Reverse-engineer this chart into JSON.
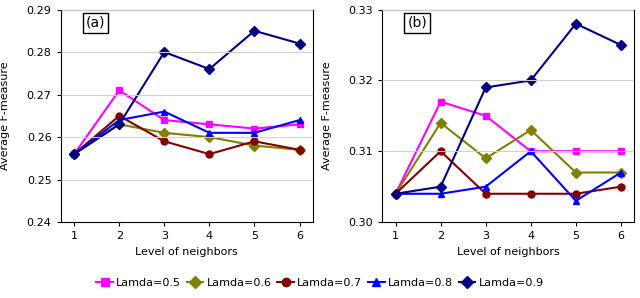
{
  "x": [
    1,
    2,
    3,
    4,
    5,
    6
  ],
  "panel_a": {
    "lambda_0.5": [
      0.256,
      0.271,
      0.264,
      0.263,
      0.262,
      0.263
    ],
    "lambda_0.6": [
      0.256,
      0.263,
      0.261,
      0.26,
      0.258,
      0.257
    ],
    "lambda_0.7": [
      0.256,
      0.265,
      0.259,
      0.256,
      0.259,
      0.257
    ],
    "lambda_0.8": [
      0.256,
      0.264,
      0.266,
      0.261,
      0.261,
      0.264
    ],
    "lambda_0.9": [
      0.256,
      0.263,
      0.28,
      0.276,
      0.285,
      0.282
    ]
  },
  "panel_b": {
    "lambda_0.5": [
      0.304,
      0.317,
      0.315,
      0.31,
      0.31,
      0.31
    ],
    "lambda_0.6": [
      0.304,
      0.314,
      0.309,
      0.313,
      0.307,
      0.307
    ],
    "lambda_0.7": [
      0.304,
      0.31,
      0.304,
      0.304,
      0.304,
      0.305
    ],
    "lambda_0.8": [
      0.304,
      0.304,
      0.305,
      0.31,
      0.303,
      0.307
    ],
    "lambda_0.9": [
      0.304,
      0.305,
      0.319,
      0.32,
      0.328,
      0.325
    ]
  },
  "ylim_a": [
    0.24,
    0.29
  ],
  "ylim_b": [
    0.3,
    0.33
  ],
  "yticks_a": [
    0.24,
    0.25,
    0.26,
    0.27,
    0.28,
    0.29
  ],
  "yticks_b": [
    0.3,
    0.31,
    0.32,
    0.33
  ],
  "colors": {
    "lambda_0.5": "#FF00FF",
    "lambda_0.6": "#808000",
    "lambda_0.7": "#800000",
    "lambda_0.8": "#0000FF",
    "lambda_0.9": "#000080"
  },
  "markers": {
    "lambda_0.5": "s",
    "lambda_0.6": "D",
    "lambda_0.7": "o",
    "lambda_0.8": "^",
    "lambda_0.9": "D"
  },
  "markersize": 5,
  "linewidth": 1.5,
  "xlabel": "Level of neighbors",
  "ylabel": "Average F-measure",
  "label_a": "(a)",
  "label_b": "(b)",
  "bg_color": "white",
  "grid_color": "#d0d0d0",
  "legend_labels": [
    "Lamda=0.5",
    "Lamda=0.6",
    "Lamda=0.7",
    "Lamda=0.8",
    "Lamda=0.9"
  ],
  "lambda_keys": [
    "lambda_0.5",
    "lambda_0.6",
    "lambda_0.7",
    "lambda_0.8",
    "lambda_0.9"
  ]
}
